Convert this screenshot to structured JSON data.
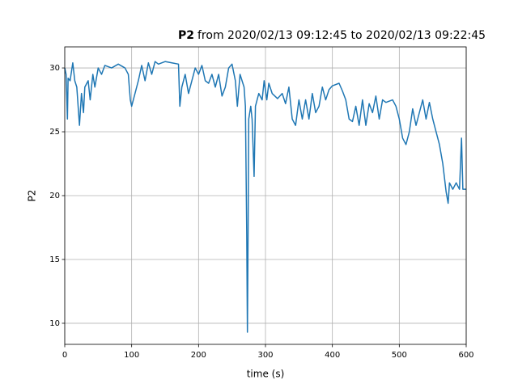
{
  "chart_data": {
    "type": "line",
    "title_bold": "P2",
    "title": "from 2020/02/13 09:12:45 to 2020/02/13 09:22:45",
    "xlabel": "time (s)",
    "ylabel": "P2",
    "xlim": [
      0,
      600
    ],
    "ylim": [
      8.35,
      31.65
    ],
    "xticks": [
      0,
      100,
      200,
      300,
      400,
      500,
      600
    ],
    "yticks": [
      10,
      15,
      20,
      25,
      30
    ],
    "grid": true,
    "x": [
      0,
      2,
      4,
      5,
      8,
      12,
      15,
      18,
      20,
      22,
      25,
      28,
      30,
      35,
      38,
      42,
      45,
      50,
      55,
      60,
      70,
      80,
      90,
      95,
      98,
      100,
      105,
      110,
      115,
      120,
      125,
      130,
      135,
      140,
      150,
      160,
      170,
      172,
      175,
      180,
      185,
      190,
      195,
      200,
      205,
      210,
      215,
      220,
      225,
      230,
      235,
      240,
      245,
      250,
      255,
      258,
      262,
      265,
      268,
      270,
      272,
      273,
      274,
      275,
      278,
      280,
      283,
      285,
      290,
      295,
      298,
      302,
      305,
      310,
      318,
      325,
      330,
      335,
      340,
      345,
      350,
      355,
      360,
      365,
      370,
      375,
      380,
      385,
      390,
      395,
      400,
      410,
      415,
      420,
      425,
      430,
      435,
      440,
      445,
      450,
      455,
      460,
      465,
      470,
      475,
      480,
      490,
      495,
      500,
      505,
      510,
      515,
      520,
      525,
      530,
      535,
      540,
      545,
      550,
      555,
      560,
      565,
      570,
      573,
      575,
      580,
      585,
      590,
      593,
      595,
      600
    ],
    "series": [
      {
        "name": "P2",
        "color": "#1f77b4",
        "values": [
          30,
          29.5,
          26,
          29.2,
          29,
          30.4,
          29,
          28.5,
          27,
          25.5,
          28,
          26.5,
          28.5,
          29,
          27.5,
          29.5,
          28.5,
          30,
          29.5,
          30.2,
          30,
          30.3,
          30,
          29.5,
          27.5,
          27,
          28,
          29,
          30.2,
          29,
          30.4,
          29.5,
          30.5,
          30.3,
          30.5,
          30.4,
          30.3,
          27,
          28.5,
          29.5,
          28,
          29,
          30,
          29.5,
          30.2,
          29,
          28.8,
          29.5,
          28.5,
          29.5,
          27.8,
          28.5,
          30,
          30.3,
          29,
          27,
          29.5,
          29,
          28.5,
          27,
          17,
          9.3,
          17,
          26,
          27,
          26,
          21.5,
          27,
          28,
          27.5,
          29,
          27.5,
          28.8,
          28,
          27.6,
          28,
          27.2,
          28.5,
          26,
          25.5,
          27.5,
          26,
          27.5,
          26,
          28,
          26.5,
          27,
          28.5,
          27.5,
          28.3,
          28.6,
          28.8,
          28.2,
          27.5,
          26,
          25.8,
          27,
          25.5,
          27.5,
          25.5,
          27.2,
          26.5,
          27.8,
          26,
          27.5,
          27.3,
          27.5,
          27,
          26,
          24.5,
          24,
          25,
          26.8,
          25.5,
          26.5,
          27.5,
          26,
          27.3,
          26,
          25,
          24,
          22.5,
          20.3,
          19.4,
          21,
          20.5,
          21,
          20.5,
          24.5,
          20.5,
          20.5
        ]
      }
    ]
  }
}
